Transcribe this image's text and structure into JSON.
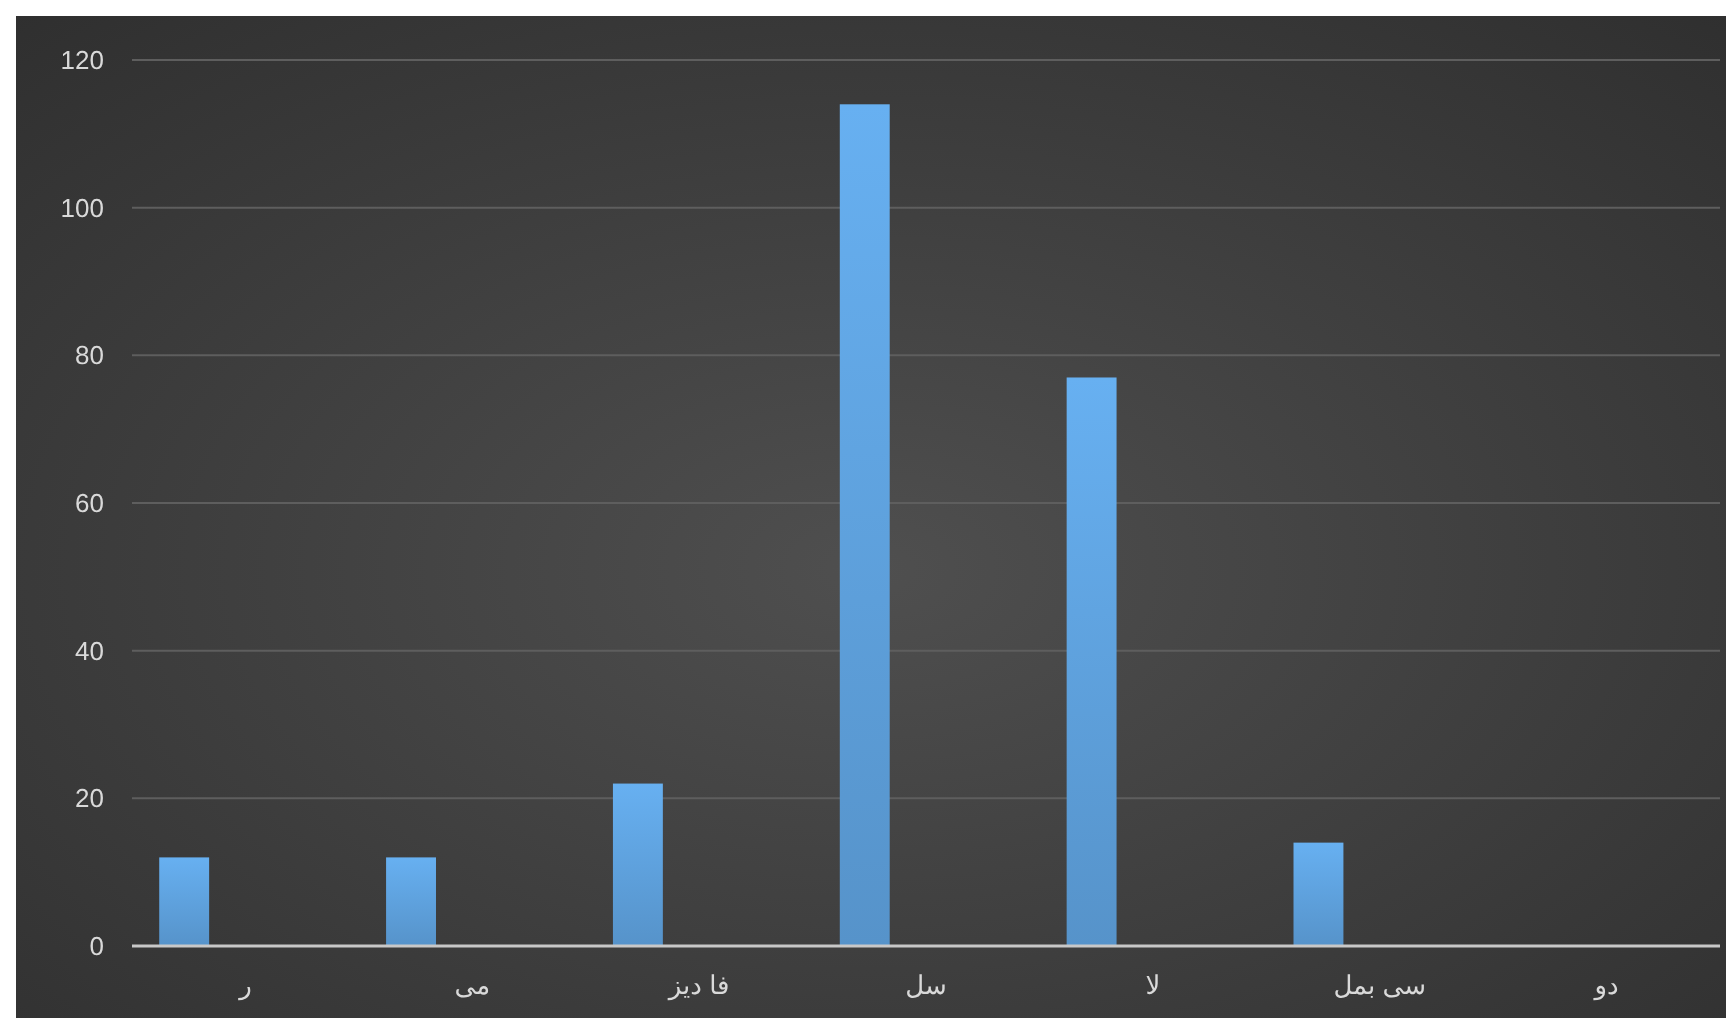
{
  "chart_data": {
    "type": "bar",
    "categories": [
      "ر",
      "می",
      "فا دیز",
      "سل",
      "لا",
      "سی بمل",
      "دو"
    ],
    "values": [
      12,
      12,
      22,
      114,
      77,
      14,
      0
    ],
    "color": "#5b9bd5",
    "ylim": [
      0,
      120
    ],
    "yticks": [
      0,
      20,
      40,
      60,
      80,
      100,
      120
    ],
    "grid": "y"
  }
}
